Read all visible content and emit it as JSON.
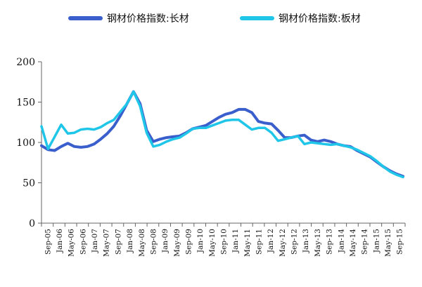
{
  "chart_data": {
    "type": "line",
    "ylim": [
      0,
      200
    ],
    "yticks": [
      0,
      50,
      100,
      150,
      200
    ],
    "x_tick_labels": [
      "Sep-05",
      "Jan-06",
      "May-06",
      "Sep-06",
      "Jan-07",
      "May-07",
      "Sep-07",
      "Jan-08",
      "May-08",
      "Sep-08",
      "Jan-09",
      "May-09",
      "Sep-09",
      "Jan-10",
      "May-10",
      "Sep-10",
      "Jan-11",
      "May-11",
      "Sep-11",
      "Jan-12",
      "May-12",
      "Sep-12",
      "Jan-13",
      "May-13",
      "Sep-13",
      "Jan-14",
      "May-14",
      "Sep-14",
      "Jan-15",
      "May-15",
      "Sep-15"
    ],
    "legend_position": "top",
    "series": [
      {
        "name": "钢材价格指数:长材",
        "color": "#3a5fcd",
        "values": [
          96,
          91,
          90,
          95,
          99,
          95,
          94,
          95,
          98,
          104,
          111,
          120,
          133,
          148,
          163,
          148,
          115,
          101,
          104,
          106,
          107,
          108,
          112,
          117,
          119,
          121,
          126,
          131,
          135,
          137,
          141,
          141,
          137,
          126,
          124,
          123,
          115,
          106,
          106,
          108,
          109,
          103,
          101,
          103,
          101,
          98,
          96,
          95,
          90,
          86,
          82,
          76,
          70,
          65,
          61,
          58
        ]
      },
      {
        "name": "钢材价格指数:板材",
        "color": "#1fc6e8",
        "values": [
          120,
          92,
          107,
          122,
          111,
          112,
          116,
          117,
          116,
          119,
          124,
          128,
          138,
          148,
          163,
          145,
          112,
          95,
          97,
          101,
          104,
          106,
          111,
          117,
          118,
          118,
          121,
          124,
          127,
          128,
          128,
          122,
          116,
          118,
          118,
          112,
          102,
          104,
          106,
          108,
          98,
          100,
          99,
          98,
          97,
          98,
          96,
          94,
          91,
          87,
          83,
          77,
          70,
          64,
          60,
          57
        ]
      }
    ]
  }
}
